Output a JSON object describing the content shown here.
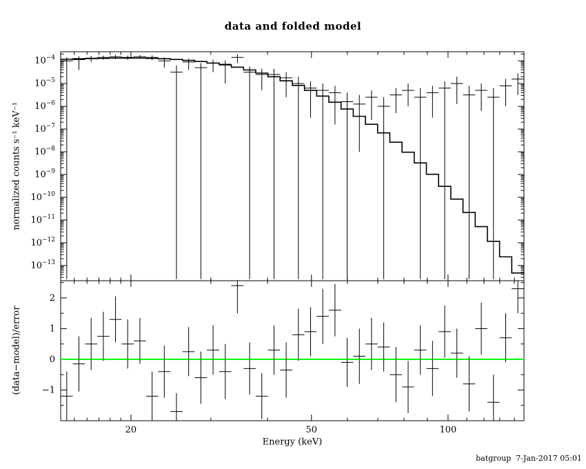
{
  "page": {
    "title": "data and folded model",
    "footer": "batgroup  7-Jan-2017 05:01"
  },
  "chart_data": {
    "type": "scatter",
    "title": "data and folded model",
    "xlabel": "Energy (keV)",
    "xscale": "log",
    "xlim": [
      14,
      147
    ],
    "xticks_major": [
      20,
      50,
      100
    ],
    "xticks_minor": [
      15,
      16,
      17,
      18,
      19,
      30,
      40,
      60,
      70,
      80,
      90,
      110,
      120,
      130,
      140
    ],
    "bin_edges_kev": [
      14.0,
      14.89,
      15.84,
      16.86,
      17.93,
      19.07,
      20.29,
      21.59,
      22.97,
      24.43,
      25.99,
      27.65,
      29.42,
      31.3,
      33.29,
      35.42,
      37.68,
      40.08,
      42.64,
      45.36,
      48.26,
      51.34,
      54.62,
      58.1,
      61.81,
      65.76,
      69.95,
      74.42,
      79.17,
      84.23,
      89.6,
      95.32,
      101.41,
      107.88,
      114.77,
      122.1,
      129.89,
      138.18,
      147.0
    ],
    "panels": [
      {
        "name": "spectrum",
        "ylabel": "normalized counts s⁻¹ keV⁻¹",
        "yscale": "log",
        "ylog_lim": [
          -13.67,
          -3.6
        ],
        "ytick_exponents": [
          -4,
          -5,
          -6,
          -7,
          -8,
          -9,
          -10,
          -11,
          -12,
          -13
        ],
        "model_step_log10": [
          -3.93,
          -3.91,
          -3.9,
          -3.89,
          -3.88,
          -3.88,
          -3.88,
          -3.89,
          -3.91,
          -3.94,
          -3.98,
          -4.03,
          -4.1,
          -4.18,
          -4.28,
          -4.4,
          -4.54,
          -4.7,
          -4.88,
          -5.08,
          -5.3,
          -5.55,
          -5.82,
          -6.12,
          -6.44,
          -6.79,
          -7.17,
          -7.58,
          -8.02,
          -8.49,
          -8.99,
          -9.52,
          -10.08,
          -10.67,
          -11.29,
          -11.94,
          -12.62,
          -13.33
        ],
        "data_log10": [
          -4.0,
          -3.95,
          -3.88,
          -3.85,
          -3.82,
          -3.85,
          -3.82,
          -3.85,
          -4.0,
          -4.5,
          -4.05,
          -4.3,
          -4.1,
          -4.15,
          -3.85,
          -4.5,
          -4.6,
          -4.6,
          -4.75,
          -5.0,
          -5.2,
          -5.3,
          -5.4,
          -5.8,
          -5.9,
          -5.6,
          -6.0,
          -5.5,
          -5.3,
          -5.6,
          -5.4,
          -5.2,
          -5.0,
          -5.5,
          -5.3,
          -5.6,
          -5.1,
          -4.8
        ],
        "data_lo_log10": [
          -13.6,
          -4.4,
          -4.05,
          -3.95,
          -3.92,
          -3.95,
          -3.9,
          -3.97,
          -4.3,
          -13.6,
          -4.4,
          -13.6,
          -4.5,
          -5.0,
          -4.1,
          -13.6,
          -5.3,
          -13.6,
          -5.6,
          -13.6,
          -6.5,
          -13.6,
          -6.8,
          -13.6,
          -8.0,
          -6.6,
          -13.6,
          -6.3,
          -6.0,
          -13.6,
          -6.5,
          -13.6,
          -5.9,
          -13.6,
          -6.2,
          -13.6,
          -6.0,
          -5.5
        ],
        "data_hi_log10": [
          -3.85,
          -3.8,
          -3.78,
          -3.77,
          -3.74,
          -3.77,
          -3.75,
          -3.76,
          -3.85,
          -4.2,
          -3.9,
          -4.1,
          -3.95,
          -3.98,
          -3.72,
          -4.25,
          -4.35,
          -4.35,
          -4.5,
          -4.7,
          -4.9,
          -5.0,
          -5.1,
          -5.4,
          -5.5,
          -5.3,
          -5.6,
          -5.2,
          -5.0,
          -5.2,
          -5.1,
          -4.9,
          -4.7,
          -5.1,
          -5.0,
          -5.2,
          -4.8,
          -4.55
        ]
      },
      {
        "name": "residuals",
        "ylabel": "(data−model)/error",
        "yscale": "linear",
        "ylim": [
          -2.0,
          2.56
        ],
        "yticks_major": [
          -1,
          0,
          1,
          2
        ],
        "yticks_minor": [
          -1.5,
          -0.5,
          0.5,
          1.5,
          2.5
        ],
        "zero_line": {
          "y": 0,
          "color": "#00ff00"
        },
        "values": [
          -1.2,
          -0.15,
          0.5,
          0.75,
          1.3,
          0.5,
          0.6,
          -1.2,
          -0.4,
          -1.7,
          0.25,
          -0.6,
          0.3,
          -0.4,
          2.4,
          -0.3,
          -1.2,
          0.3,
          -0.35,
          0.8,
          0.9,
          1.4,
          1.6,
          -0.1,
          0.1,
          0.5,
          0.4,
          -0.5,
          -0.9,
          0.3,
          -0.3,
          0.9,
          0.2,
          -0.8,
          1.0,
          -1.4,
          0.7,
          2.3
        ],
        "errors": [
          0.8,
          0.9,
          0.85,
          0.8,
          0.75,
          0.8,
          0.75,
          0.8,
          0.85,
          0.6,
          0.8,
          0.85,
          0.8,
          0.9,
          0.9,
          0.85,
          0.75,
          0.8,
          0.9,
          0.85,
          0.8,
          0.9,
          0.85,
          0.8,
          0.9,
          0.85,
          0.8,
          0.9,
          0.85,
          0.8,
          0.9,
          0.85,
          0.8,
          0.9,
          0.85,
          0.9,
          0.8,
          0.8
        ]
      }
    ],
    "line_color": "#000000",
    "data_color": "#000000"
  }
}
